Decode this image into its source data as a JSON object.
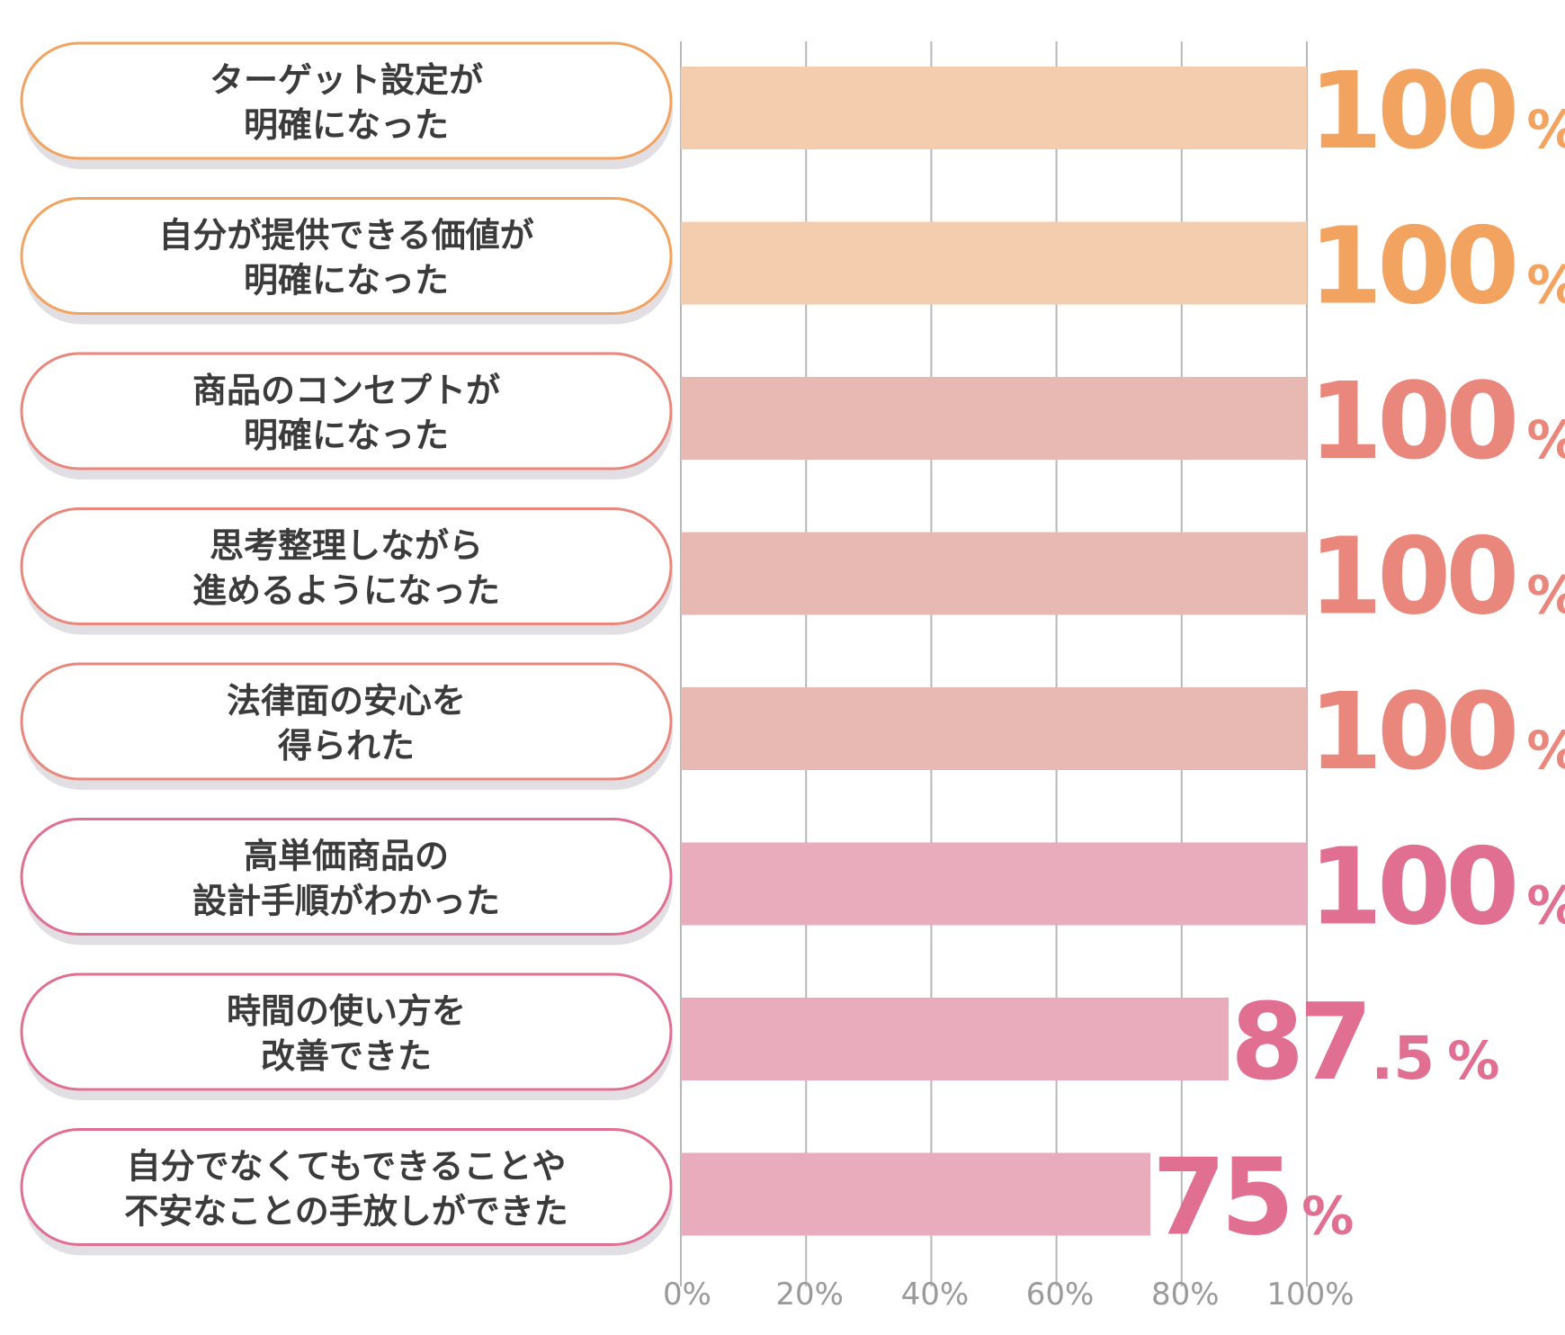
{
  "chart_data": {
    "type": "bar",
    "orientation": "horizontal",
    "categories": [
      "ターゲット設定が 明確になった",
      "自分が提供できる価値が 明確になった",
      "商品のコンセプトが 明確になった",
      "思考整理しながら 進めるようになった",
      "法律面の安心を 得られた",
      "高単価商品の 設計手順がわかった",
      "時間の使い方を 改善できた",
      "自分でなくてもできることや 不安なことの手放しができた"
    ],
    "label_lines": [
      [
        "ターゲット設定が",
        "明確になった"
      ],
      [
        "自分が提供できる価値が",
        "明確になった"
      ],
      [
        "商品のコンセプトが",
        "明確になった"
      ],
      [
        "思考整理しながら",
        "進めるようになった"
      ],
      [
        "法律面の安心を",
        "得られた"
      ],
      [
        "高単価商品の",
        "設計手順がわかった"
      ],
      [
        "時間の使い方を",
        "改善できた"
      ],
      [
        "自分でなくてもできることや",
        "不安なことの手放しができた"
      ]
    ],
    "values": [
      100,
      100,
      100,
      100,
      100,
      100,
      87.5,
      75
    ],
    "value_labels": [
      {
        "main": "100",
        "sub": "",
        "unit": "%"
      },
      {
        "main": "100",
        "sub": "",
        "unit": "%"
      },
      {
        "main": "100",
        "sub": "",
        "unit": "%"
      },
      {
        "main": "100",
        "sub": "",
        "unit": "%"
      },
      {
        "main": "100",
        "sub": "",
        "unit": "%"
      },
      {
        "main": "100",
        "sub": "",
        "unit": "%"
      },
      {
        "main": "87",
        "sub": ".5",
        "unit": "%"
      },
      {
        "main": "75",
        "sub": "",
        "unit": "%"
      }
    ],
    "x_ticks": [
      "0%",
      "20%",
      "40%",
      "60%",
      "80%",
      "100%"
    ],
    "xlim": [
      0,
      100
    ],
    "grid": true,
    "colors": {
      "bar": [
        "#f3cdae",
        "#f3cdae",
        "#e8b8b3",
        "#e8b8b3",
        "#e8b8b3",
        "#e8acbd",
        "#e8acbd",
        "#e8acbd"
      ],
      "accent": [
        "#f2a35f",
        "#f2a35f",
        "#e9877c",
        "#e9877c",
        "#e9877c",
        "#e06f91",
        "#e06f91",
        "#e06f91"
      ],
      "label_text": "#3b3b3b",
      "grid": "#b8b8b8",
      "tick_text": "#9a9a9a",
      "pill_shadow": "#e2dfe4"
    }
  }
}
